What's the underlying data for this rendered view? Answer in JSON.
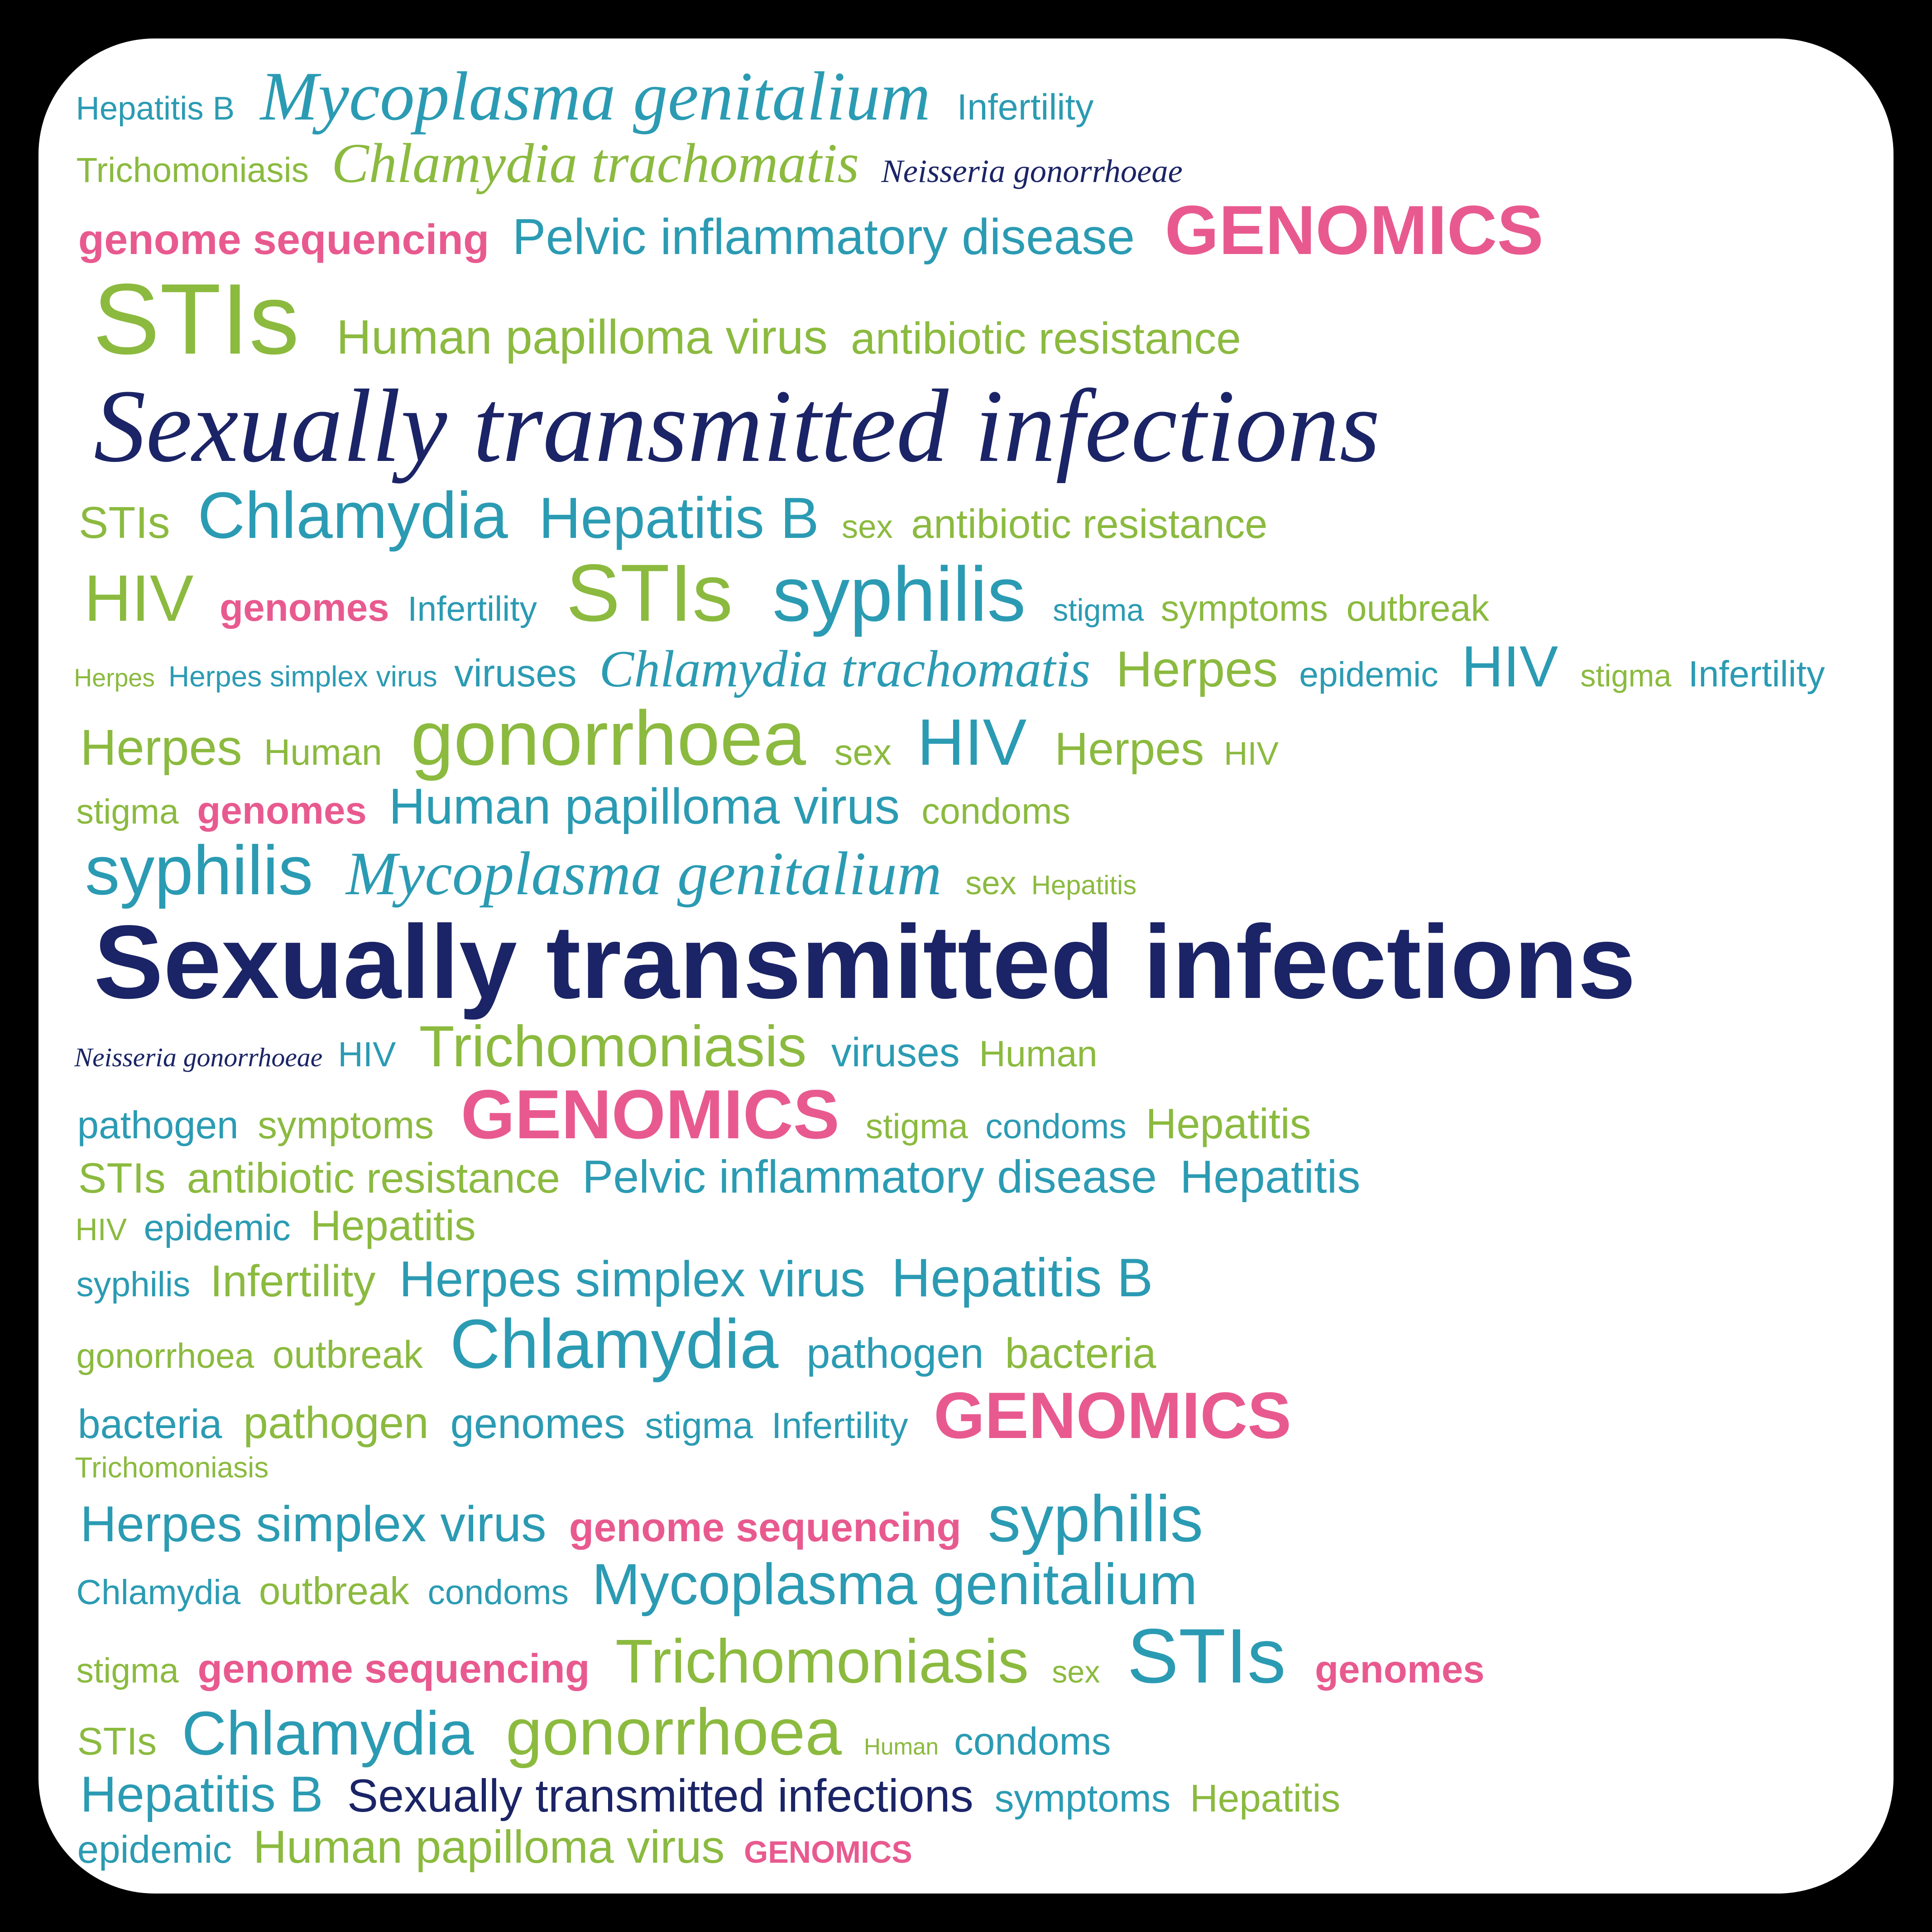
{
  "wordcloud": {
    "type": "wordcloud",
    "background_color": "#ffffff",
    "frame_color": "#000000",
    "border_radius_vmin": 6,
    "colors": {
      "navy": "#1b2466",
      "teal": "#2b9bb3",
      "green": "#8bba3f",
      "pink": "#e85a8f"
    },
    "rows": [
      [
        {
          "t": "Hepatitis B",
          "c": "teal",
          "fs": 1.7,
          "style": "sans"
        },
        {
          "t": "Mycoplasma genitalium",
          "c": "teal",
          "fs": 3.6,
          "style": "ital"
        },
        {
          "t": "Infertility",
          "c": "teal",
          "fs": 1.9,
          "style": "sans"
        }
      ],
      [
        {
          "t": "Trichomoniasis",
          "c": "green",
          "fs": 1.8,
          "style": "sans"
        },
        {
          "t": "Chlamydia trachomatis",
          "c": "green",
          "fs": 2.9,
          "style": "ital"
        },
        {
          "t": "Neisseria gonorrhoeae",
          "c": "navy",
          "fs": 1.7,
          "style": "ital"
        }
      ],
      [
        {
          "t": "genome sequencing",
          "c": "pink",
          "fs": 2.2,
          "style": "sans bold"
        },
        {
          "t": "Pelvic inflammatory disease",
          "c": "teal",
          "fs": 2.6,
          "style": "sans"
        },
        {
          "t": "GENOMICS",
          "c": "pink",
          "fs": 3.6,
          "style": "sans bold"
        }
      ],
      [
        {
          "t": "STIs",
          "c": "green",
          "fs": 5.2,
          "style": "sans"
        },
        {
          "t": "Human papilloma virus",
          "c": "green",
          "fs": 2.5,
          "style": "sans"
        },
        {
          "t": "antibiotic resistance",
          "c": "green",
          "fs": 2.3,
          "style": "sans"
        }
      ],
      [
        {
          "t": "Sexually transmitted infections",
          "c": "navy",
          "fs": 5.4,
          "style": "ital"
        }
      ],
      [
        {
          "t": "STIs",
          "c": "green",
          "fs": 2.3,
          "style": "sans"
        },
        {
          "t": "Chlamydia",
          "c": "teal",
          "fs": 3.4,
          "style": "sans"
        },
        {
          "t": "Hepatitis B",
          "c": "teal",
          "fs": 3.0,
          "style": "sans"
        },
        {
          "t": "sex",
          "c": "green",
          "fs": 1.7,
          "style": "sans"
        },
        {
          "t": "antibiotic resistance",
          "c": "green",
          "fs": 2.1,
          "style": "sans"
        }
      ],
      [
        {
          "t": "HIV",
          "c": "green",
          "fs": 3.4,
          "style": "sans"
        },
        {
          "t": "genomes",
          "c": "pink",
          "fs": 2.0,
          "style": "sans bold"
        },
        {
          "t": "Infertility",
          "c": "teal",
          "fs": 1.8,
          "style": "sans"
        },
        {
          "t": "STIs",
          "c": "green",
          "fs": 4.2,
          "style": "sans"
        },
        {
          "t": "syphilis",
          "c": "teal",
          "fs": 4.0,
          "style": "sans"
        },
        {
          "t": "stigma",
          "c": "teal",
          "fs": 1.6,
          "style": "sans"
        },
        {
          "t": "symptoms",
          "c": "green",
          "fs": 1.9,
          "style": "sans"
        },
        {
          "t": "outbreak",
          "c": "green",
          "fs": 1.9,
          "style": "sans"
        }
      ],
      [
        {
          "t": "Herpes",
          "c": "green",
          "fs": 1.3,
          "style": "sans"
        },
        {
          "t": "Herpes simplex virus",
          "c": "teal",
          "fs": 1.5,
          "style": "sans"
        },
        {
          "t": "viruses",
          "c": "teal",
          "fs": 2.0,
          "style": "sans"
        },
        {
          "t": "Chlamydia trachomatis",
          "c": "teal",
          "fs": 2.7,
          "style": "ital"
        },
        {
          "t": "Herpes",
          "c": "green",
          "fs": 2.6,
          "style": "sans"
        },
        {
          "t": "epidemic",
          "c": "teal",
          "fs": 1.8,
          "style": "sans"
        },
        {
          "t": "HIV",
          "c": "teal",
          "fs": 3.0,
          "style": "sans"
        },
        {
          "t": "stigma",
          "c": "green",
          "fs": 1.6,
          "style": "sans"
        },
        {
          "t": "Infertility",
          "c": "teal",
          "fs": 1.9,
          "style": "sans"
        }
      ],
      [
        {
          "t": "Herpes",
          "c": "green",
          "fs": 2.6,
          "style": "sans"
        },
        {
          "t": "Human",
          "c": "green",
          "fs": 1.9,
          "style": "sans"
        },
        {
          "t": "gonorrhoea",
          "c": "green",
          "fs": 4.0,
          "style": "sans"
        },
        {
          "t": "sex",
          "c": "green",
          "fs": 1.9,
          "style": "sans"
        },
        {
          "t": "HIV",
          "c": "teal",
          "fs": 3.4,
          "style": "sans"
        },
        {
          "t": "Herpes",
          "c": "green",
          "fs": 2.4,
          "style": "sans"
        },
        {
          "t": "HIV",
          "c": "green",
          "fs": 1.7,
          "style": "sans"
        }
      ],
      [
        {
          "t": "stigma",
          "c": "green",
          "fs": 1.8,
          "style": "sans"
        },
        {
          "t": "genomes",
          "c": "pink",
          "fs": 2.0,
          "style": "sans bold"
        },
        {
          "t": "Human papilloma virus",
          "c": "teal",
          "fs": 2.6,
          "style": "sans"
        },
        {
          "t": "condoms",
          "c": "green",
          "fs": 1.9,
          "style": "sans"
        }
      ],
      [
        {
          "t": "syphilis",
          "c": "teal",
          "fs": 3.6,
          "style": "sans"
        },
        {
          "t": "Mycoplasma genitalium",
          "c": "teal",
          "fs": 3.2,
          "style": "ital"
        },
        {
          "t": "sex",
          "c": "green",
          "fs": 1.7,
          "style": "sans"
        },
        {
          "t": "Hepatitis",
          "c": "green",
          "fs": 1.4,
          "style": "sans"
        }
      ],
      [
        {
          "t": "Sexually transmitted infections",
          "c": "navy",
          "fs": 5.4,
          "style": "sans bold"
        }
      ],
      [
        {
          "t": "Neisseria gonorrhoeae",
          "c": "navy",
          "fs": 1.4,
          "style": "ital"
        },
        {
          "t": "HIV",
          "c": "teal",
          "fs": 1.8,
          "style": "sans"
        },
        {
          "t": "Trichomoniasis",
          "c": "green",
          "fs": 3.0,
          "style": "sans"
        },
        {
          "t": "viruses",
          "c": "teal",
          "fs": 2.1,
          "style": "sans"
        },
        {
          "t": "Human",
          "c": "green",
          "fs": 1.9,
          "style": "sans"
        }
      ],
      [
        {
          "t": "pathogen",
          "c": "teal",
          "fs": 2.0,
          "style": "sans"
        },
        {
          "t": "symptoms",
          "c": "green",
          "fs": 2.0,
          "style": "sans"
        },
        {
          "t": "GENOMICS",
          "c": "pink",
          "fs": 3.6,
          "style": "sans bold"
        },
        {
          "t": "stigma",
          "c": "green",
          "fs": 1.8,
          "style": "sans"
        },
        {
          "t": "condoms",
          "c": "teal",
          "fs": 1.8,
          "style": "sans"
        },
        {
          "t": "Hepatitis",
          "c": "green",
          "fs": 2.2,
          "style": "sans"
        }
      ],
      [
        {
          "t": "STIs",
          "c": "green",
          "fs": 2.2,
          "style": "sans"
        },
        {
          "t": "antibiotic resistance",
          "c": "green",
          "fs": 2.2,
          "style": "sans"
        },
        {
          "t": "Pelvic inflammatory disease",
          "c": "teal",
          "fs": 2.4,
          "style": "sans"
        },
        {
          "t": "Hepatitis",
          "c": "teal",
          "fs": 2.4,
          "style": "sans"
        }
      ],
      [
        {
          "t": "HIV",
          "c": "green",
          "fs": 1.6,
          "style": "sans"
        },
        {
          "t": "epidemic",
          "c": "teal",
          "fs": 1.9,
          "style": "sans"
        },
        {
          "t": "Hepatitis",
          "c": "green",
          "fs": 2.2,
          "style": "sans"
        }
      ],
      [
        {
          "t": "syphilis",
          "c": "teal",
          "fs": 1.8,
          "style": "sans"
        },
        {
          "t": "Infertility",
          "c": "green",
          "fs": 2.3,
          "style": "sans"
        },
        {
          "t": "Herpes simplex virus",
          "c": "teal",
          "fs": 2.6,
          "style": "sans"
        },
        {
          "t": "Hepatitis B",
          "c": "teal",
          "fs": 2.8,
          "style": "sans"
        }
      ],
      [
        {
          "t": "gonorrhoea",
          "c": "green",
          "fs": 1.8,
          "style": "sans"
        },
        {
          "t": "outbreak",
          "c": "green",
          "fs": 2.0,
          "style": "sans"
        },
        {
          "t": "Chlamydia",
          "c": "teal",
          "fs": 3.6,
          "style": "sans"
        },
        {
          "t": "pathogen",
          "c": "teal",
          "fs": 2.2,
          "style": "sans"
        },
        {
          "t": "bacteria",
          "c": "green",
          "fs": 2.2,
          "style": "sans"
        }
      ],
      [
        {
          "t": "bacteria",
          "c": "teal",
          "fs": 2.1,
          "style": "sans"
        },
        {
          "t": "pathogen",
          "c": "green",
          "fs": 2.3,
          "style": "sans"
        },
        {
          "t": "genomes",
          "c": "teal",
          "fs": 2.2,
          "style": "sans"
        },
        {
          "t": "stigma",
          "c": "teal",
          "fs": 1.9,
          "style": "sans"
        },
        {
          "t": "Infertility",
          "c": "teal",
          "fs": 1.9,
          "style": "sans"
        },
        {
          "t": "GENOMICS",
          "c": "pink",
          "fs": 3.4,
          "style": "sans bold"
        }
      ],
      [
        {
          "t": "Trichomoniasis",
          "c": "green",
          "fs": 1.5,
          "style": "sans"
        }
      ],
      [
        {
          "t": "Herpes simplex virus",
          "c": "teal",
          "fs": 2.6,
          "style": "sans"
        },
        {
          "t": "genome sequencing",
          "c": "pink",
          "fs": 2.1,
          "style": "sans bold"
        },
        {
          "t": "syphilis",
          "c": "teal",
          "fs": 3.4,
          "style": "sans"
        }
      ],
      [
        {
          "t": "Chlamydia",
          "c": "teal",
          "fs": 1.8,
          "style": "sans"
        },
        {
          "t": "outbreak",
          "c": "green",
          "fs": 2.0,
          "style": "sans"
        },
        {
          "t": "condoms",
          "c": "teal",
          "fs": 1.8,
          "style": "sans"
        },
        {
          "t": "Mycoplasma genitalium",
          "c": "teal",
          "fs": 3.0,
          "style": "sans"
        }
      ],
      [
        {
          "t": "stigma",
          "c": "green",
          "fs": 1.8,
          "style": "sans"
        },
        {
          "t": "genome sequencing",
          "c": "pink",
          "fs": 2.1,
          "style": "sans bold"
        },
        {
          "t": "Trichomoniasis",
          "c": "green",
          "fs": 3.2,
          "style": "sans"
        },
        {
          "t": "sex",
          "c": "green",
          "fs": 1.6,
          "style": "sans"
        },
        {
          "t": "STIs",
          "c": "teal",
          "fs": 4.0,
          "style": "sans"
        },
        {
          "t": "genomes",
          "c": "pink",
          "fs": 2.0,
          "style": "sans bold"
        }
      ],
      [
        {
          "t": "STIs",
          "c": "green",
          "fs": 2.0,
          "style": "sans"
        },
        {
          "t": "Chlamydia",
          "c": "teal",
          "fs": 3.2,
          "style": "sans"
        },
        {
          "t": "gonorrhoea",
          "c": "green",
          "fs": 3.4,
          "style": "sans"
        },
        {
          "t": "Human",
          "c": "green",
          "fs": 1.2,
          "style": "sans"
        },
        {
          "t": "condoms",
          "c": "teal",
          "fs": 2.0,
          "style": "sans"
        }
      ],
      [
        {
          "t": "Hepatitis B",
          "c": "teal",
          "fs": 2.6,
          "style": "sans"
        },
        {
          "t": "Sexually transmitted infections",
          "c": "navy",
          "fs": 2.4,
          "style": "sans"
        },
        {
          "t": "symptoms",
          "c": "teal",
          "fs": 2.0,
          "style": "sans"
        },
        {
          "t": "Hepatitis",
          "c": "green",
          "fs": 2.0,
          "style": "sans"
        }
      ],
      [
        {
          "t": "epidemic",
          "c": "teal",
          "fs": 2.0,
          "style": "sans"
        },
        {
          "t": "Human papilloma virus",
          "c": "green",
          "fs": 2.4,
          "style": "sans"
        },
        {
          "t": "GENOMICS",
          "c": "pink",
          "fs": 1.6,
          "style": "sans bold"
        }
      ]
    ]
  }
}
